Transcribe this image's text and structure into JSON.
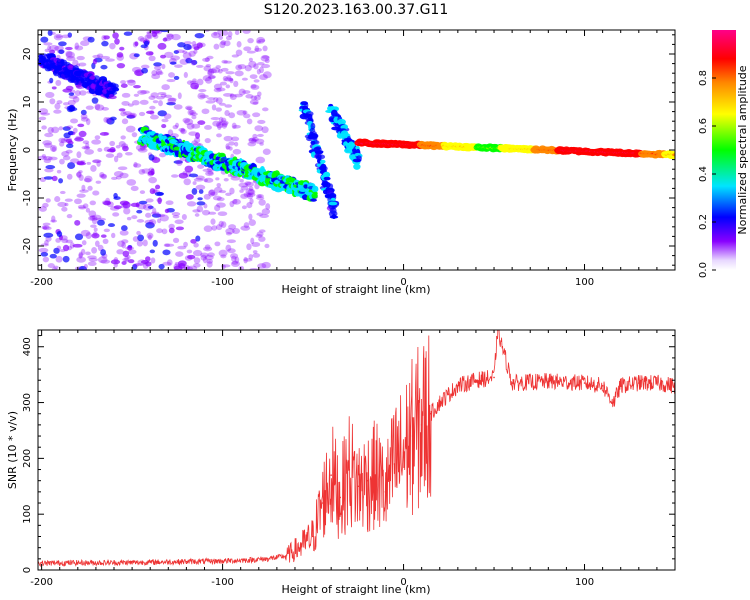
{
  "title": "S120.2023.163.00.37.G11",
  "chart_data": [
    {
      "type": "heatmap",
      "xlabel": "Height of straight line (km)",
      "ylabel": "Frequency (Hz)",
      "xlim": [
        -202,
        150
      ],
      "ylim": [
        -25,
        25
      ],
      "xticks": [
        -200,
        -100,
        0,
        100
      ],
      "yticks": [
        -20,
        -10,
        0,
        10,
        20
      ],
      "grid": false,
      "colorbar": {
        "label": "Normalized spectral amplitude",
        "range": [
          0,
          1
        ],
        "ticks": [
          0.0,
          0.2,
          0.4,
          0.6,
          0.8
        ],
        "colormap": [
          "#ffffff",
          "#8800ff",
          "#0000ff",
          "#00e5ff",
          "#00ff00",
          "#ffff00",
          "#ff8800",
          "#ff0000",
          "#ff0088"
        ]
      },
      "features": [
        {
          "name": "scattered",
          "x_range": [
            -200,
            -75
          ],
          "freq_range": [
            -25,
            25
          ],
          "amplitude": 0.15
        },
        {
          "name": "descending arm",
          "x_range": [
            -145,
            -50
          ],
          "freq_start": 3,
          "freq_end": -9,
          "amplitude": 0.3
        },
        {
          "name": "upper-left streak",
          "x_range": [
            -200,
            -160
          ],
          "freq_start": 19,
          "freq_end": 12,
          "amplitude": 0.15
        },
        {
          "name": "slanted streak 1",
          "x_range": [
            -55,
            -38
          ],
          "freq_start": 9,
          "freq_end": -13,
          "amplitude": 0.2
        },
        {
          "name": "slanted streak 2",
          "x_range": [
            -40,
            -25
          ],
          "freq_start": 8,
          "freq_end": -2,
          "amplitude": 0.25
        },
        {
          "name": "main line",
          "x_range": [
            -25,
            150
          ],
          "freq_start": 1.5,
          "freq_end": -1,
          "amplitude": 0.85
        }
      ]
    },
    {
      "type": "line",
      "xlabel": "Height of straight line (km)",
      "ylabel": "SNR (10 * v/v)",
      "xlim": [
        -202,
        150
      ],
      "ylim": [
        0,
        430
      ],
      "xticks": [
        -200,
        -100,
        0,
        100
      ],
      "yticks": [
        0,
        100,
        200,
        300,
        400
      ],
      "grid": false,
      "color": "#ee3333",
      "series": [
        {
          "x": [
            -202,
            -180,
            -160,
            -140,
            -120,
            -100,
            -85,
            -75,
            -65,
            -58,
            -50,
            -45,
            -40,
            -35,
            -30,
            -25,
            -20,
            -15,
            -10,
            -5,
            0,
            5,
            10,
            15,
            20,
            25,
            30,
            40,
            50,
            52,
            60,
            80,
            100,
            110,
            116,
            120,
            130,
            140,
            150
          ],
          "y": [
            12,
            13,
            13,
            14,
            15,
            16,
            18,
            20,
            25,
            40,
            60,
            120,
            170,
            130,
            180,
            150,
            160,
            170,
            140,
            190,
            210,
            240,
            260,
            280,
            300,
            315,
            330,
            340,
            345,
            430,
            335,
            338,
            335,
            330,
            300,
            330,
            335,
            335,
            330
          ]
        }
      ]
    }
  ]
}
